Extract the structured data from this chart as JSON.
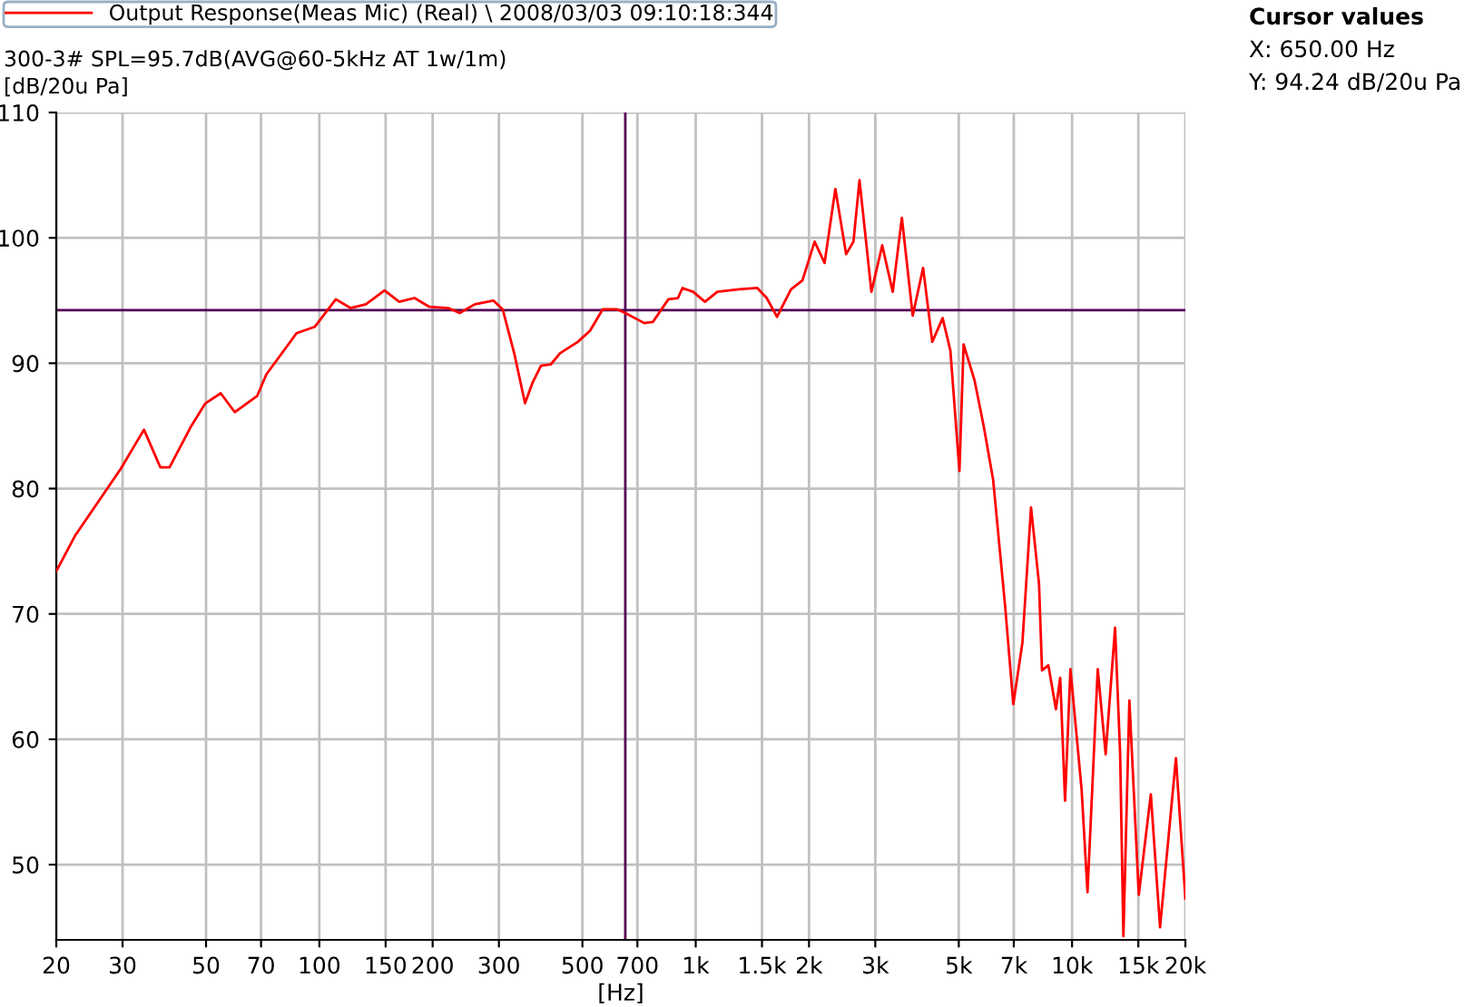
{
  "chart_data": {
    "type": "line",
    "subtitle": "300-3# SPL=95.7dB(AVG@60-5kHz AT 1w/1m)",
    "ylabel": "[dB/20u Pa]",
    "xlabel": "[Hz]",
    "log": "x",
    "grid": true,
    "legend": "top left",
    "marker": "none",
    "line_style": "solid",
    "xlim": [
      20,
      20000
    ],
    "ylim": [
      44,
      110
    ],
    "xticks": [
      20,
      30,
      50,
      70,
      100,
      150,
      200,
      300,
      500,
      700,
      {
        "value": 1000,
        "label": "1k"
      },
      {
        "value": 1500,
        "label": "1.5k"
      },
      {
        "value": 2000,
        "label": "2k"
      },
      {
        "value": 3000,
        "label": "3k"
      },
      {
        "value": 5000,
        "label": "5k"
      },
      {
        "value": 7000,
        "label": "7k"
      },
      {
        "value": 10000,
        "label": "10k"
      },
      {
        "value": 15000,
        "label": "15k"
      },
      {
        "value": 20000,
        "label": "20k"
      }
    ],
    "yticks": [
      50,
      60,
      70,
      80,
      90,
      100,
      110
    ],
    "ref_lines": [
      {
        "axis": "x",
        "value": 650,
        "color": "#550055"
      },
      {
        "axis": "y",
        "value": 94.24,
        "color": "#550055"
      }
    ],
    "annotations": [
      "Cursor values",
      "X: 650.00 Hz",
      "Y: 94.24 dB/20u Pa"
    ],
    "series": [
      {
        "name": "Output Response(Meas Mic) (Real) \\ 2008/03/03 09:10:18:344",
        "color": "#ff0000",
        "x": [
          20,
          22.5,
          29.7,
          34.2,
          37.8,
          40,
          45.5,
          49.8,
          54.7,
          59.6,
          68.4,
          72.3,
          87,
          97.2,
          110.6,
          121,
          133,
          149,
          163,
          179,
          196,
          220,
          236,
          259,
          290,
          307,
          330,
          352,
          368,
          388,
          412,
          436,
          486,
          524,
          566,
          618,
          650,
          730,
          770,
          846,
          897,
          922,
          984,
          1058,
          1142,
          1304,
          1458,
          1544,
          1645,
          1792,
          1921,
          2070,
          2200,
          2350,
          2510,
          2625,
          2724,
          2930,
          3130,
          3338,
          3530,
          3772,
          4020,
          4252,
          4530,
          4750,
          5020,
          5150,
          5510,
          5830,
          6170,
          6640,
          6980,
          7380,
          7780,
          8170,
          8320,
          8650,
          9060,
          9300,
          9580,
          9900,
          10600,
          10990,
          11700,
          12280,
          13010,
          13420,
          13690,
          14200,
          15040,
          16190,
          17130,
          18880,
          20000
        ],
        "values": [
          73.4,
          76.3,
          81.6,
          84.7,
          81.7,
          81.7,
          84.9,
          86.8,
          87.6,
          86.1,
          87.4,
          89.1,
          92.4,
          92.9,
          95.1,
          94.4,
          94.7,
          95.8,
          94.9,
          95.2,
          94.5,
          94.4,
          94.0,
          94.7,
          95.0,
          94.3,
          90.7,
          86.8,
          88.4,
          89.8,
          89.9,
          90.8,
          91.7,
          92.6,
          94.3,
          94.3,
          94.0,
          93.2,
          93.3,
          95.1,
          95.2,
          96.0,
          95.7,
          94.9,
          95.7,
          95.9,
          96.0,
          95.2,
          93.7,
          95.9,
          96.6,
          99.7,
          98.0,
          103.9,
          98.7,
          99.7,
          104.6,
          95.7,
          99.4,
          95.7,
          101.6,
          93.8,
          97.6,
          91.7,
          93.6,
          91.0,
          81.4,
          91.5,
          88.6,
          84.9,
          80.7,
          70.6,
          62.8,
          67.7,
          78.5,
          72.4,
          65.5,
          65.9,
          62.4,
          64.9,
          55.1,
          65.6,
          56.0,
          47.8,
          65.6,
          58.8,
          68.9,
          58.8,
          44.3,
          63.1,
          47.6,
          55.6,
          45.0,
          58.5,
          47.3
        ]
      }
    ]
  }
}
